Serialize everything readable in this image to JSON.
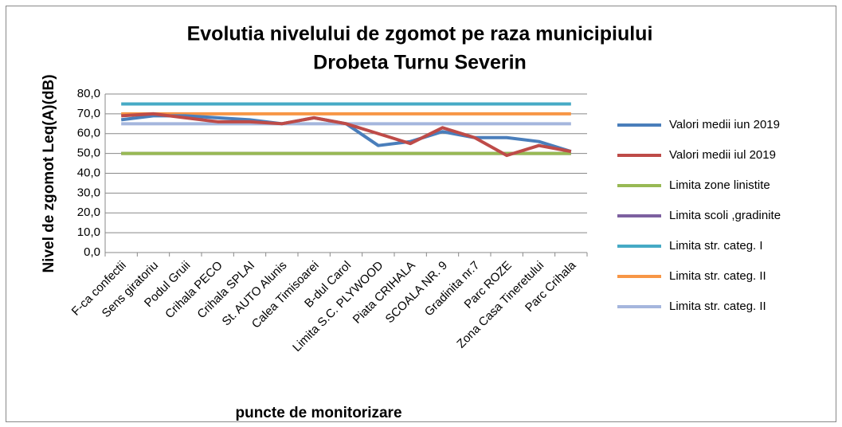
{
  "chart_data": {
    "type": "line",
    "title": [
      "Evolutia nivelului de zgomot pe raza municipiului",
      "Drobeta Turnu Severin"
    ],
    "y_label": "Nivel de zgomot Leq(A)(dB)",
    "x_label": "puncte de monitorizare",
    "categories": [
      "F-ca confectii",
      "Sens giratoriu",
      "Podul Gruii",
      "Crihala PECO",
      "Crihala SPLAI",
      "St. AUTO Alunis",
      "Calea Timisoarei",
      "B-dul Carol",
      "Limita S.C. PLYWOOD",
      "Piata CRIHALA",
      "SCOALA NR. 9",
      "Gradinita nr.7",
      "Parc ROZE",
      "Zona Casa Tineretului",
      "Parc Crihala"
    ],
    "series": [
      {
        "name": "Valori medii iun 2019",
        "color": "#4a7ebb",
        "values": [
          67,
          69,
          69,
          68,
          67,
          65,
          68,
          65,
          54,
          56,
          61,
          58,
          58,
          56,
          51
        ]
      },
      {
        "name": "Valori medii iul 2019",
        "color": "#be4b48",
        "values": [
          69,
          70,
          68,
          66,
          66,
          65,
          68,
          65,
          60,
          55,
          63,
          58,
          49,
          54,
          51
        ]
      },
      {
        "name": "Limita zone linistite",
        "color": "#98b954",
        "values": [
          50,
          50,
          50,
          50,
          50,
          50,
          50,
          50,
          50,
          50,
          50,
          50,
          50,
          50,
          50
        ]
      },
      {
        "name": "Limita scoli ,gradinite",
        "color": "#7d60a0",
        "values": [
          50,
          50,
          50,
          50,
          50,
          50,
          50,
          50,
          50,
          50,
          50,
          50,
          50,
          50,
          50
        ]
      },
      {
        "name": "Limita str. categ. I",
        "color": "#46aac5",
        "values": [
          75,
          75,
          75,
          75,
          75,
          75,
          75,
          75,
          75,
          75,
          75,
          75,
          75,
          75,
          75
        ]
      },
      {
        "name": "Limita str. categ. II",
        "color": "#f79646",
        "values": [
          70,
          70,
          70,
          70,
          70,
          70,
          70,
          70,
          70,
          70,
          70,
          70,
          70,
          70,
          70
        ]
      },
      {
        "name": "Limita str. categ. II",
        "color": "#a5b6dd",
        "values": [
          65,
          65,
          65,
          65,
          65,
          65,
          65,
          65,
          65,
          65,
          65,
          65,
          65,
          65,
          65
        ]
      }
    ],
    "ylim": [
      0,
      80
    ],
    "yticks": [
      {
        "value": 0,
        "label": "0,0"
      },
      {
        "value": 10,
        "label": "10,0"
      },
      {
        "value": 20,
        "label": "20,0"
      },
      {
        "value": 30,
        "label": "30,0"
      },
      {
        "value": 40,
        "label": "40,0"
      },
      {
        "value": 50,
        "label": "50,0"
      },
      {
        "value": 60,
        "label": "60,0"
      },
      {
        "value": 70,
        "label": "70,0"
      },
      {
        "value": 80,
        "label": "80,0"
      }
    ],
    "grid": true,
    "legend": "right"
  }
}
